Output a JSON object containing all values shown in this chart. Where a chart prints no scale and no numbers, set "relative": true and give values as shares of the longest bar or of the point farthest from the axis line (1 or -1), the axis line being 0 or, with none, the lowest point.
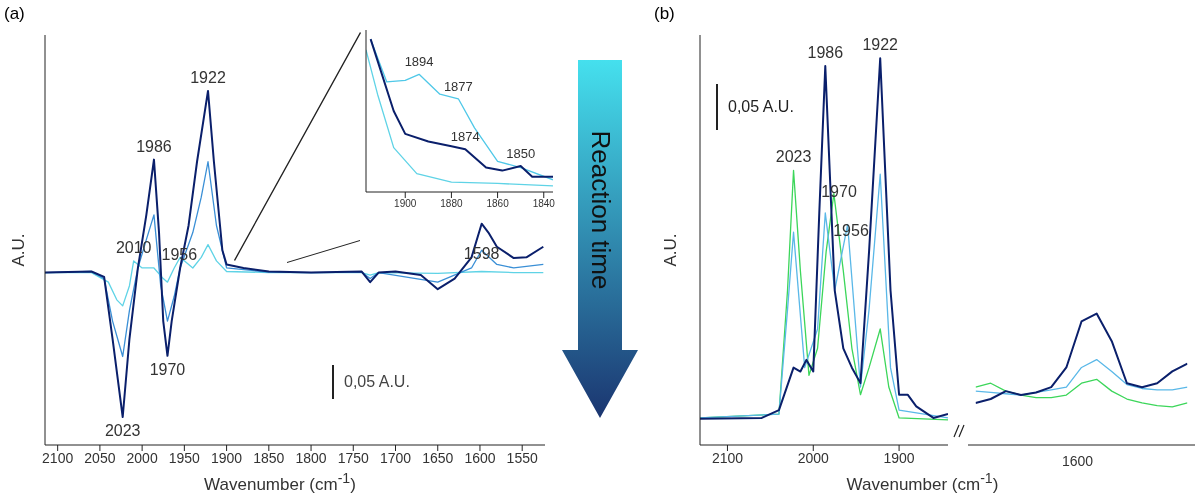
{
  "chart_data": [
    {
      "type": "line",
      "title": "(a)",
      "xlabel": "Wavenumber (cm$^{-1}$)",
      "ylabel": "A.U.",
      "relative": true,
      "xlim": [
        2115,
        1523
      ],
      "xticks": [
        2100,
        2050,
        2000,
        1950,
        1900,
        1850,
        1800,
        1750,
        1700,
        1650,
        1600,
        1550
      ],
      "series": [
        {
          "color": "#5fd3e6",
          "x": [
            2115,
            2060,
            2040,
            2030,
            2023,
            2015,
            2010,
            2000,
            1986,
            1975,
            1970,
            1962,
            1955,
            1940,
            1930,
            1922,
            1912,
            1900,
            1850,
            1800,
            1740,
            1730,
            1720,
            1650,
            1598,
            1560,
            1525
          ],
          "values": [
            0.487,
            0.487,
            0.46,
            0.41,
            0.393,
            0.45,
            0.52,
            0.5,
            0.5,
            0.47,
            0.46,
            0.5,
            0.53,
            0.5,
            0.53,
            0.566,
            0.52,
            0.49,
            0.487,
            0.487,
            0.487,
            0.48,
            0.487,
            0.485,
            0.49,
            0.487,
            0.487
          ]
        },
        {
          "color": "#3a8fd6",
          "x": [
            2115,
            2060,
            2045,
            2035,
            2023,
            2015,
            2005,
            1995,
            1986,
            1978,
            1970,
            1962,
            1955,
            1940,
            1930,
            1922,
            1912,
            1900,
            1850,
            1800,
            1740,
            1730,
            1720,
            1650,
            1610,
            1598,
            1580,
            1560,
            1525
          ],
          "values": [
            0.487,
            0.49,
            0.47,
            0.35,
            0.25,
            0.38,
            0.5,
            0.58,
            0.65,
            0.45,
            0.35,
            0.42,
            0.5,
            0.6,
            0.7,
            0.8,
            0.62,
            0.5,
            0.488,
            0.487,
            0.488,
            0.47,
            0.487,
            0.46,
            0.5,
            0.55,
            0.51,
            0.5,
            0.51
          ]
        },
        {
          "color": "#0a1f6b",
          "x": [
            2115,
            2060,
            2045,
            2035,
            2023,
            2015,
            2005,
            1995,
            1986,
            1980,
            1975,
            1970,
            1965,
            1955,
            1945,
            1935,
            1922,
            1915,
            1905,
            1900,
            1880,
            1850,
            1800,
            1740,
            1730,
            1720,
            1700,
            1670,
            1650,
            1630,
            1610,
            1598,
            1590,
            1580,
            1560,
            1545,
            1525
          ],
          "values": [
            0.487,
            0.49,
            0.475,
            0.3,
            0.079,
            0.3,
            0.5,
            0.65,
            0.806,
            0.6,
            0.35,
            0.252,
            0.35,
            0.5,
            0.62,
            0.8,
            1.0,
            0.8,
            0.55,
            0.51,
            0.5,
            0.49,
            0.487,
            0.49,
            0.46,
            0.487,
            0.49,
            0.48,
            0.44,
            0.47,
            0.53,
            0.625,
            0.6,
            0.56,
            0.528,
            0.53,
            0.56
          ]
        }
      ],
      "annotations": [
        {
          "text": "1986",
          "x": 1986,
          "y": 0.806
        },
        {
          "text": "1922",
          "x": 1922,
          "y": 1.0
        },
        {
          "text": "2010",
          "x": 2010,
          "y": 0.52
        },
        {
          "text": "1956",
          "x": 1956,
          "y": 0.5
        },
        {
          "text": "2023",
          "x": 2023,
          "y": 0.079
        },
        {
          "text": "1970",
          "x": 1970,
          "y": 0.252
        },
        {
          "text": "1598",
          "x": 1598,
          "y": 0.625
        },
        "0,05 A.U.",
        "Reaction time"
      ]
    },
    {
      "type": "line",
      "relative": true,
      "xlim": [
        1917,
        1836
      ],
      "xticks": [
        1900,
        1880,
        1860,
        1840
      ],
      "series": [
        {
          "color": "#5fd3e6",
          "x": [
            1917,
            1912,
            1905,
            1895,
            1880,
            1860,
            1836
          ],
          "values": [
            0.93,
            0.64,
            0.29,
            0.12,
            0.065,
            0.056,
            0.04
          ]
        },
        {
          "color": "#4fc8e8",
          "x": [
            1915,
            1908,
            1900,
            1894,
            1885,
            1877,
            1870,
            1860,
            1850,
            1836
          ],
          "values": [
            1.0,
            0.72,
            0.73,
            0.77,
            0.64,
            0.61,
            0.42,
            0.2,
            0.16,
            0.08
          ]
        },
        {
          "color": "#0a1f6b",
          "x": [
            1915,
            1905,
            1900,
            1890,
            1880,
            1874,
            1865,
            1858,
            1850,
            1845,
            1836
          ],
          "values": [
            1.0,
            0.53,
            0.38,
            0.33,
            0.3,
            0.28,
            0.16,
            0.14,
            0.17,
            0.1,
            0.1
          ]
        }
      ],
      "annotations": [
        {
          "text": "1894",
          "x": 1894,
          "y": 0.77
        },
        {
          "text": "1877",
          "x": 1877,
          "y": 0.61
        },
        {
          "text": "1874",
          "x": 1874,
          "y": 0.28
        },
        {
          "text": "1850",
          "x": 1850,
          "y": 0.17
        }
      ]
    },
    {
      "type": "line",
      "title": "(b)",
      "xlabel": "Wavenumber (cm$^{-1}$)",
      "ylabel": "A.U.",
      "relative": true,
      "xlim": [
        2132,
        1843
      ],
      "xticks": [
        2100,
        2000,
        1900
      ],
      "series": [
        {
          "color": "#3cd65a",
          "x": [
            2132,
            2040,
            2030,
            2023,
            2015,
            2005,
            1995,
            1985,
            1976,
            1965,
            1955,
            1945,
            1935,
            1922,
            1912,
            1900,
            1843
          ],
          "values": [
            0.07,
            0.08,
            0.4,
            0.71,
            0.45,
            0.18,
            0.25,
            0.5,
            0.65,
            0.45,
            0.25,
            0.13,
            0.2,
            0.3,
            0.15,
            0.07,
            0.065
          ]
        },
        {
          "color": "#5ab8e8",
          "x": [
            2132,
            2040,
            2030,
            2023,
            2010,
            1995,
            1986,
            1975,
            1960,
            1945,
            1935,
            1922,
            1910,
            1900,
            1843
          ],
          "values": [
            0.07,
            0.08,
            0.35,
            0.55,
            0.2,
            0.3,
            0.6,
            0.4,
            0.57,
            0.15,
            0.35,
            0.7,
            0.2,
            0.09,
            0.07
          ]
        },
        {
          "color": "#0a1f6b",
          "x": [
            2132,
            2060,
            2040,
            2023,
            2015,
            2008,
            2000,
            1993,
            1986,
            1975,
            1965,
            1955,
            1945,
            1935,
            1922,
            1910,
            1900,
            1890,
            1880,
            1860,
            1843
          ],
          "values": [
            0.068,
            0.07,
            0.09,
            0.2,
            0.19,
            0.22,
            0.19,
            0.6,
            0.98,
            0.4,
            0.25,
            0.2,
            0.16,
            0.5,
            1.0,
            0.4,
            0.13,
            0.13,
            0.1,
            0.07,
            0.08
          ]
        }
      ],
      "annotations": [
        {
          "text": "2023",
          "x": 2023,
          "y": 0.71
        },
        {
          "text": "1986",
          "x": 1986,
          "y": 0.98
        },
        {
          "text": "1970",
          "x": 1970,
          "y": 0.62
        },
        {
          "text": "1956",
          "x": 1956,
          "y": 0.52
        },
        {
          "text": "1922",
          "x": 1922,
          "y": 1.0
        },
        "0,05 A.U."
      ]
    },
    {
      "type": "line",
      "relative": true,
      "categories": [
        null,
        null,
        null,
        null,
        null,
        null,
        null,
        null,
        null,
        null,
        null,
        null,
        null,
        null,
        null
      ],
      "annotations": [
        "1600"
      ],
      "series": [
        {
          "color": "#3cd65a",
          "values": [
            0.44,
            0.47,
            0.41,
            0.38,
            0.36,
            0.36,
            0.38,
            0.47,
            0.5,
            0.41,
            0.35,
            0.32,
            0.3,
            0.29,
            0.32
          ]
        },
        {
          "color": "#5ab8e8",
          "values": [
            0.41,
            0.4,
            0.39,
            0.38,
            0.4,
            0.42,
            0.44,
            0.59,
            0.65,
            0.56,
            0.46,
            0.43,
            0.42,
            0.42,
            0.44
          ]
        },
        {
          "color": "#0a1f6b",
          "values": [
            0.32,
            0.35,
            0.41,
            0.38,
            0.4,
            0.44,
            0.59,
            0.94,
            1,
            0.79,
            0.47,
            0.44,
            0.47,
            0.56,
            0.62
          ]
        }
      ]
    }
  ]
}
